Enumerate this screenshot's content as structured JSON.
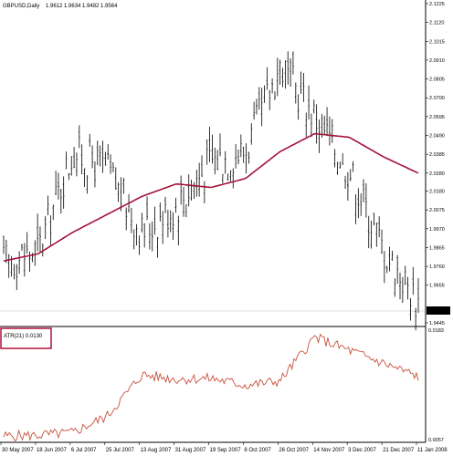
{
  "header": {
    "symbol_label": "GBPUSD,Daily",
    "ohlc_label": "1.9612 1.9634 1.9482 1.9564"
  },
  "colors": {
    "background": "#ffffff",
    "candle": "#000000",
    "moving_average": "#a4123a",
    "atr_line": "#c8503c",
    "current_price_bg": "#000000",
    "current_price_text": "#ffffff",
    "indicator_highlight": "#b0103c"
  },
  "indicator": {
    "label": "ATR(21) 0.0130",
    "top_tick": "0.0183",
    "bottom_tick": "0.0057"
  },
  "price_axis": {
    "ticks": [
      "2.1225",
      "2.1120",
      "2.1015",
      "2.0910",
      "2.0805",
      "2.0700",
      "2.0595",
      "2.0490",
      "2.0385",
      "2.0280",
      "2.0180",
      "2.0075",
      "1.9970",
      "1.9865",
      "1.9760",
      "1.9655",
      "1.9445"
    ],
    "current_price": "1.9564"
  },
  "time_axis": {
    "labels": [
      "30 May 2007",
      "18 Jun 2007",
      "6 Jul 2007",
      "25 Jul 2007",
      "13 Aug 2007",
      "31 Aug 2007",
      "19 Sep 2007",
      "8 Oct 2007",
      "26 Oct 2007",
      "14 Nov 2007",
      "3 Dec 2007",
      "21 Dec 2007",
      "11 Jan 2008"
    ]
  },
  "chart_data": [
    {
      "type": "candlestick",
      "title": "GBPUSD,Daily",
      "ylim": [
        1.9445,
        2.1225
      ],
      "x": [
        "30 May 2007",
        "18 Jun 2007",
        "6 Jul 2007",
        "25 Jul 2007",
        "13 Aug 2007",
        "31 Aug 2007",
        "19 Sep 2007",
        "8 Oct 2007",
        "26 Oct 2007",
        "14 Nov 2007",
        "3 Dec 2007",
        "21 Dec 2007",
        "11 Jan 2008"
      ],
      "close_approx": [
        1.978,
        1.985,
        2.04,
        2.03,
        1.995,
        2.01,
        2.035,
        2.04,
        2.088,
        2.06,
        2.03,
        1.985,
        1.956
      ],
      "moving_average_approx": [
        1.979,
        1.983,
        1.995,
        2.005,
        2.015,
        2.022,
        2.02,
        2.025,
        2.04,
        2.05,
        2.048,
        2.037,
        2.028
      ],
      "last_bar": {
        "open": 1.9612,
        "high": 1.9634,
        "low": 1.9482,
        "close": 1.9564
      }
    },
    {
      "type": "line",
      "title": "ATR(21) 0.0130",
      "ylim": [
        0.0057,
        0.0183
      ],
      "x": [
        "30 May 2007",
        "18 Jun 2007",
        "6 Jul 2007",
        "25 Jul 2007",
        "13 Aug 2007",
        "31 Aug 2007",
        "19 Sep 2007",
        "8 Oct 2007",
        "26 Oct 2007",
        "14 Nov 2007",
        "3 Dec 2007",
        "21 Dec 2007",
        "11 Jan 2008"
      ],
      "values": [
        0.0062,
        0.0063,
        0.0066,
        0.0085,
        0.0132,
        0.0127,
        0.0128,
        0.012,
        0.0125,
        0.0175,
        0.016,
        0.0145,
        0.013
      ]
    }
  ]
}
